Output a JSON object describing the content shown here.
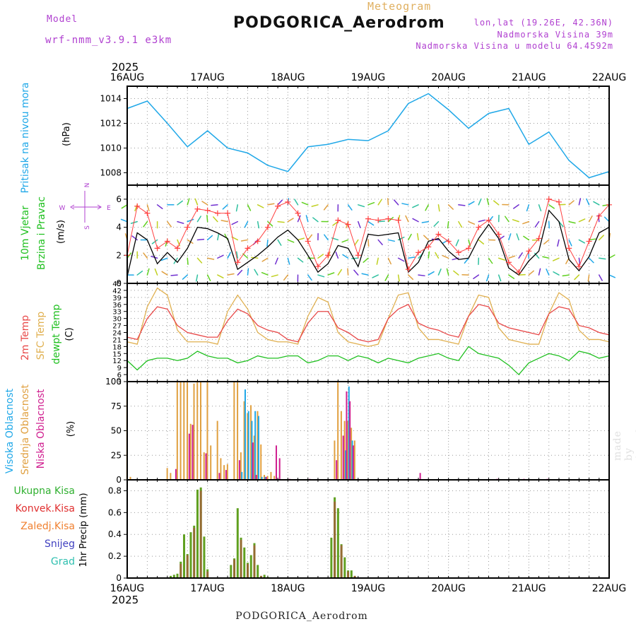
{
  "header": {
    "model_label": "Model",
    "model_name": "wrf-nmm_v3.9.1  e3km",
    "product": "Meteogram",
    "station": "PODGORICA_Aerodrom",
    "coords": "lon,lat (19.26E, 42.36N)",
    "elevation": "Nadmorska Visina 39m",
    "model_elevation": "Nadmorska Visina u modelu 64.4592m",
    "year_top": "2025",
    "year_bottom": "2025",
    "footer_station": "PODGORICA_Aerodrom",
    "credit": "made by Angel"
  },
  "colors": {
    "pressure": "#20a8e8",
    "wind_speed": "#000000",
    "wind_gust": "#ff4040",
    "temp_2m": "#e84848",
    "temp_sfc": "#e0b050",
    "dewpoint": "#20c020",
    "cloud_high": "#20a8e8",
    "cloud_mid": "#e0a040",
    "cloud_low": "#d02090",
    "precip_total": "#60a020",
    "precip_conv": "#c04040",
    "label_purple": "#b040d0"
  },
  "chart_data": [
    {
      "type": "line",
      "name": "pressure",
      "ylabel_main": "Pritisak na nivou mora",
      "ylabel_unit": "(hPa)",
      "x_unit": "hours from 16AUG 00Z",
      "x": [
        0,
        6,
        12,
        18,
        24,
        30,
        36,
        42,
        48,
        54,
        60,
        66,
        72,
        78,
        84,
        90,
        96,
        102,
        108,
        114,
        120,
        126,
        132,
        138,
        144
      ],
      "series": [
        {
          "name": "MSLP",
          "values": [
            1013.2,
            1013.8,
            1012.0,
            1010.1,
            1011.4,
            1010.0,
            1009.6,
            1008.6,
            1008.1,
            1010.1,
            1010.3,
            1010.7,
            1010.6,
            1011.4,
            1013.6,
            1014.4,
            1013.1,
            1011.6,
            1012.8,
            1013.2,
            1010.3,
            1011.3,
            1009.0,
            1007.6,
            1008.1
          ]
        }
      ],
      "ylim": [
        1007,
        1015
      ],
      "yticks": [
        1008,
        1010,
        1012,
        1014
      ],
      "grid": true
    },
    {
      "type": "line",
      "name": "wind",
      "ylabel_main": "10m Vjetar",
      "ylabel_sub": "Brzina i Pravac",
      "ylabel_unit": "(m/s)",
      "compass_labels": [
        "N",
        "E",
        "S",
        "W"
      ],
      "x_unit": "hours from 16AUG 00Z",
      "x": [
        0,
        3,
        6,
        9,
        12,
        15,
        18,
        21,
        24,
        27,
        30,
        33,
        36,
        39,
        42,
        45,
        48,
        51,
        54,
        57,
        60,
        63,
        66,
        69,
        72,
        75,
        78,
        81,
        84,
        87,
        90,
        93,
        96,
        99,
        102,
        105,
        108,
        111,
        114,
        117,
        120,
        123,
        126,
        129,
        132,
        135,
        138,
        141,
        144
      ],
      "series": [
        {
          "name": "speed",
          "values": [
            0.5,
            3.6,
            3.1,
            1.4,
            2.2,
            1.5,
            2.5,
            4.0,
            3.9,
            3.6,
            3.2,
            1.0,
            1.5,
            2.0,
            2.6,
            3.3,
            3.8,
            3.1,
            2.0,
            0.8,
            1.4,
            2.7,
            2.5,
            1.2,
            3.5,
            3.4,
            3.5,
            3.6,
            0.8,
            1.5,
            3.0,
            3.2,
            2.3,
            1.7,
            1.8,
            3.2,
            4.2,
            3.2,
            1.1,
            0.6,
            1.6,
            2.3,
            5.2,
            4.4,
            1.7,
            0.9,
            1.9,
            3.6,
            4.0
          ]
        },
        {
          "name": "gust",
          "values": [
            2.0,
            5.5,
            5.0,
            2.5,
            3.0,
            2.5,
            4.0,
            5.3,
            5.2,
            5.0,
            5.0,
            1.5,
            2.5,
            3.0,
            4.0,
            5.5,
            5.8,
            5.0,
            3.0,
            1.2,
            2.0,
            4.5,
            4.2,
            2.0,
            4.6,
            4.5,
            4.6,
            4.5,
            1.0,
            2.2,
            2.6,
            3.5,
            3.0,
            2.2,
            2.5,
            4.0,
            4.5,
            3.5,
            1.5,
            0.8,
            2.3,
            3.2,
            6.0,
            5.8,
            2.5,
            1.2,
            3.0,
            4.8,
            5.6
          ]
        }
      ],
      "ylim": [
        0,
        7
      ],
      "yticks": [
        0,
        2,
        4,
        6
      ],
      "grid": true
    },
    {
      "type": "line",
      "name": "temperature",
      "ylabel_lines": [
        "2m Temp",
        "SFC Temp",
        "dewpt Temp"
      ],
      "ylabel_unit": "(C)",
      "x_unit": "hours from 16AUG 00Z",
      "x": [
        0,
        3,
        6,
        9,
        12,
        15,
        18,
        21,
        24,
        27,
        30,
        33,
        36,
        39,
        42,
        45,
        48,
        51,
        54,
        57,
        60,
        63,
        66,
        69,
        72,
        75,
        78,
        81,
        84,
        87,
        90,
        93,
        96,
        99,
        102,
        105,
        108,
        111,
        114,
        117,
        120,
        123,
        126,
        129,
        132,
        135,
        138,
        141,
        144
      ],
      "series": [
        {
          "name": "2m Temp",
          "values": [
            22,
            21,
            30,
            35,
            34,
            27,
            24,
            23,
            22,
            22,
            29,
            34,
            32,
            27,
            25,
            24,
            21,
            20,
            28,
            33,
            33,
            26,
            24,
            21,
            20,
            21,
            30,
            34,
            36,
            28,
            26,
            25,
            23,
            22,
            31,
            36,
            35,
            28,
            26,
            25,
            24,
            23,
            32,
            35,
            34,
            27,
            26,
            24,
            23
          ]
        },
        {
          "name": "SFC Temp",
          "values": [
            20,
            19,
            35,
            43,
            40,
            25,
            20,
            20,
            20,
            19,
            33,
            40,
            34,
            24,
            21,
            20,
            20,
            19,
            31,
            39,
            37,
            24,
            20,
            19,
            18,
            19,
            30,
            40,
            41,
            26,
            21,
            21,
            20,
            19,
            31,
            40,
            39,
            26,
            21,
            20,
            19,
            19,
            32,
            41,
            38,
            25,
            21,
            21,
            20
          ]
        },
        {
          "name": "dewpt Temp",
          "values": [
            12,
            8,
            12,
            13,
            13,
            12,
            13,
            16,
            14,
            13,
            13,
            11,
            12,
            14,
            13,
            13,
            14,
            14,
            11,
            12,
            14,
            14,
            12,
            14,
            13,
            11,
            13,
            12,
            11,
            13,
            14,
            15,
            13,
            12,
            18,
            15,
            14,
            13,
            10,
            6,
            11,
            13,
            15,
            14,
            12,
            16,
            15,
            13,
            14
          ]
        }
      ],
      "ylim": [
        3,
        45
      ],
      "yticks": [
        3,
        6,
        9,
        12,
        15,
        18,
        21,
        24,
        27,
        30,
        33,
        36,
        39,
        42,
        45
      ],
      "grid": true
    },
    {
      "type": "bar",
      "name": "clouds",
      "ylabel_lines": [
        "Visoka Oblacnost",
        "Srednja Oblacnost",
        "Niska  Oblacnost"
      ],
      "ylabel_unit": "(%)",
      "x_unit": "hours from 16AUG 00Z",
      "series": [
        {
          "name": "Srednja",
          "x": [
            0,
            1,
            12,
            13,
            15,
            16,
            17,
            18,
            19,
            20,
            21,
            22,
            23,
            24,
            25,
            27,
            28,
            29,
            30,
            32,
            33,
            34,
            35,
            36,
            37,
            38,
            39,
            40,
            41,
            42,
            43,
            44,
            62,
            63,
            64,
            65,
            66,
            67,
            68
          ],
          "values": [
            93,
            3,
            12,
            7,
            100,
            100,
            100,
            100,
            57,
            98,
            100,
            100,
            28,
            100,
            35,
            60,
            22,
            15,
            16,
            100,
            100,
            28,
            80,
            68,
            76,
            45,
            70,
            36,
            5,
            4,
            8,
            4,
            40,
            100,
            70,
            60,
            60,
            53,
            40
          ]
        },
        {
          "name": "Visoka",
          "x": [
            34,
            35,
            36,
            37,
            38,
            39,
            40,
            41,
            65,
            66,
            67
          ],
          "values": [
            8,
            92,
            70,
            60,
            70,
            65,
            3,
            3,
            30,
            95,
            40
          ]
        },
        {
          "name": "Niska",
          "x": [
            14,
            18,
            19,
            23,
            27,
            29,
            33,
            37,
            38,
            41,
            44,
            45,
            48,
            54,
            62,
            64,
            65,
            66,
            67,
            87,
            110,
            118,
            125
          ],
          "values": [
            11,
            47,
            56,
            27,
            7,
            10,
            20,
            38,
            5,
            3,
            35,
            22,
            1,
            1,
            20,
            45,
            90,
            80,
            35,
            7,
            1,
            1,
            1
          ]
        }
      ],
      "ylim": [
        0,
        100
      ],
      "yticks": [
        0,
        25,
        50,
        75,
        100
      ],
      "grid": true
    },
    {
      "type": "bar",
      "name": "precipitation",
      "ylabel_lines": [
        "Ukupna  Kisa",
        "Konvek.Kisa",
        "Zaledj.Kisa",
        "Snijeg",
        "Grad"
      ],
      "ylabel_unit": "1hr Precip (mm)",
      "x_unit": "hours from 16AUG 00Z",
      "series": [
        {
          "name": "Ukupna Kisa",
          "x": [
            13,
            14,
            15,
            16,
            17,
            18,
            19,
            20,
            21,
            22,
            23,
            24,
            31,
            32,
            33,
            34,
            35,
            36,
            37,
            38,
            39,
            40,
            41,
            42,
            61,
            62,
            63,
            64,
            65,
            66,
            67,
            68
          ],
          "values": [
            0.02,
            0.03,
            0.04,
            0.15,
            0.4,
            0.22,
            0.42,
            0.48,
            0.81,
            0.83,
            0.38,
            0.08,
            0.12,
            0.18,
            0.64,
            0.37,
            0.28,
            0.14,
            0.21,
            0.32,
            0.12,
            0.02,
            0.03,
            0.01,
            0.37,
            0.74,
            0.64,
            0.31,
            0.19,
            0.07,
            0.07,
            0.02
          ]
        },
        {
          "name": "Konvek.Kisa",
          "x": [
            16,
            18,
            20,
            22,
            24,
            32,
            34,
            36,
            38,
            40,
            62,
            64,
            66,
            68
          ],
          "values": [
            0.13,
            0.21,
            0.46,
            0.8,
            0.06,
            0.17,
            0.35,
            0.13,
            0.3,
            0.02,
            0.7,
            0.3,
            0.06,
            0.02
          ]
        }
      ],
      "ylim": [
        0,
        0.9
      ],
      "yticks": [
        0,
        0.2,
        0.4,
        0.6,
        0.8
      ],
      "grid": true
    }
  ],
  "x_axis": {
    "day_labels": [
      "16AUG",
      "17AUG",
      "18AUG",
      "19AUG",
      "20AUG",
      "21AUG",
      "22AUG"
    ],
    "day_hours": [
      0,
      24,
      48,
      72,
      96,
      120,
      144
    ]
  }
}
